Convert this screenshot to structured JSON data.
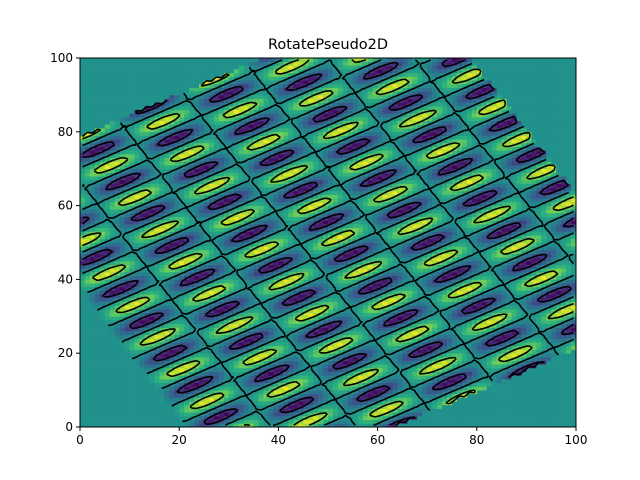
{
  "chart_data": {
    "type": "heatmap",
    "title": "RotatePseudo2D",
    "xlabel": "",
    "ylabel": "",
    "xlim": [
      0,
      100
    ],
    "ylim": [
      0,
      100
    ],
    "x_ticks": [
      "0",
      "20",
      "40",
      "60",
      "80",
      "100"
    ],
    "y_ticks": [
      "0",
      "20",
      "40",
      "60",
      "80",
      "100"
    ],
    "colormap": "viridis",
    "grid": false,
    "field": {
      "grid_size": 100,
      "rotation_deg": 30,
      "center": [
        50,
        50
      ],
      "wave_x_period": 30,
      "triangle_y_period": 10,
      "outside_value": 0
    },
    "contour_levels": [
      -0.6,
      0,
      0.6
    ],
    "contour_styles": [
      "dashed",
      "solid",
      "solid"
    ],
    "contour_color": "#000000",
    "colors": {
      "axes_edge": "#000000",
      "background": "#ffffff"
    }
  }
}
